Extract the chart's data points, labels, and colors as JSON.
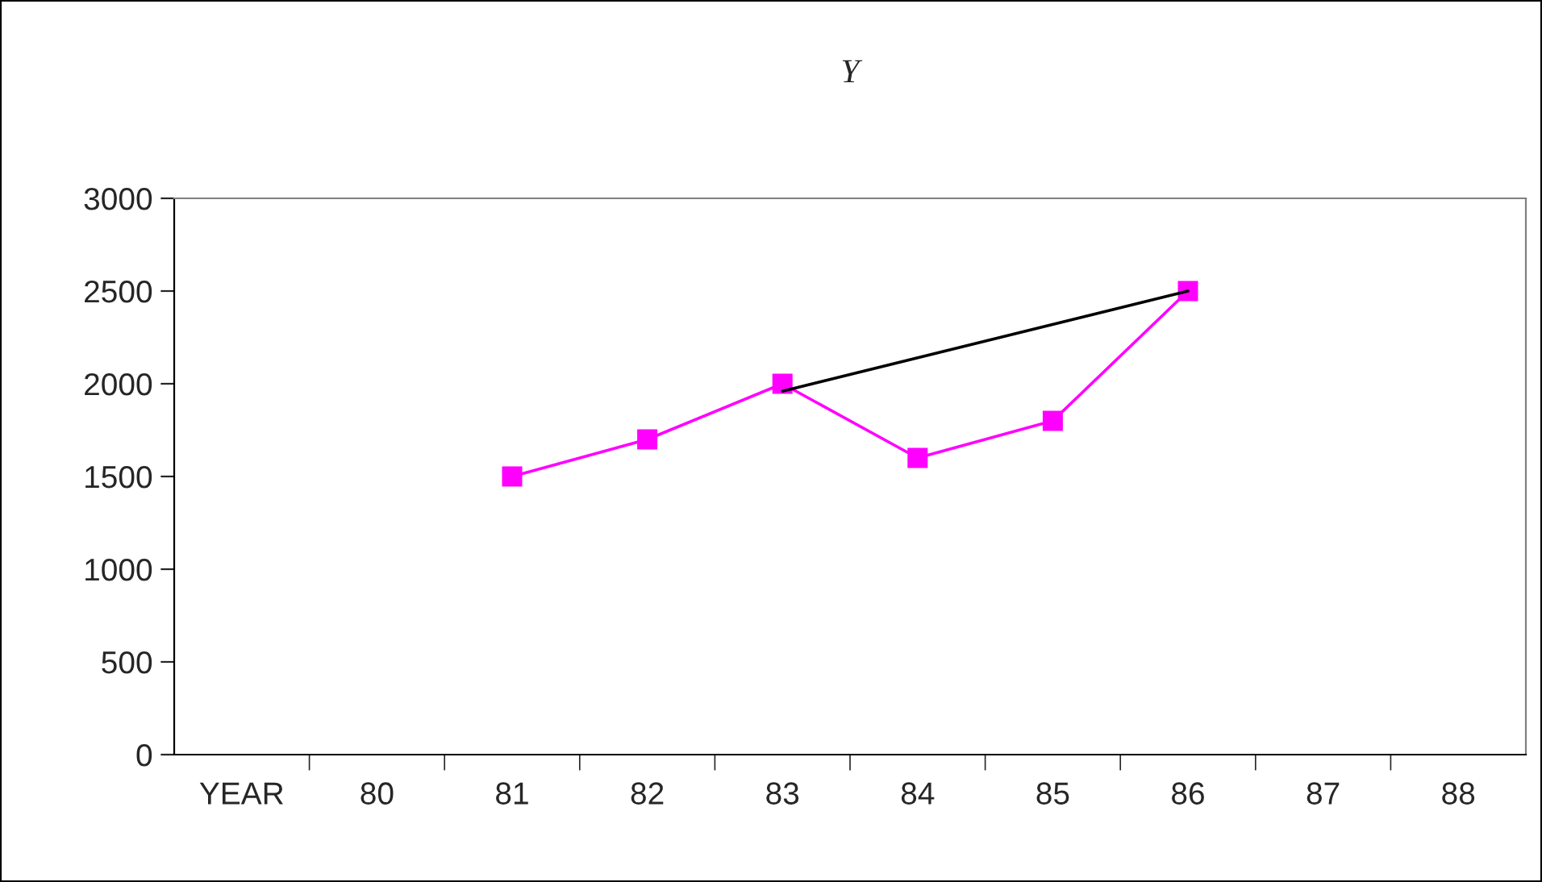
{
  "chart_data": {
    "type": "line",
    "title": "Y",
    "categories": [
      "YEAR",
      "80",
      "81",
      "82",
      "83",
      "84",
      "85",
      "86",
      "87",
      "88"
    ],
    "series": [
      {
        "color": "#ff00ff",
        "marker": "square",
        "values": [
          null,
          null,
          1500,
          1700,
          2000,
          1600,
          1800,
          2500,
          null,
          null
        ]
      },
      {
        "color": "#000000",
        "marker": "none",
        "values": [
          null,
          null,
          null,
          null,
          1960,
          null,
          null,
          2500,
          null,
          null
        ]
      }
    ],
    "ylim": [
      0,
      3000
    ],
    "yticks": [
      0,
      500,
      1000,
      1500,
      2000,
      2500,
      3000
    ],
    "grid": false,
    "legend": false
  }
}
